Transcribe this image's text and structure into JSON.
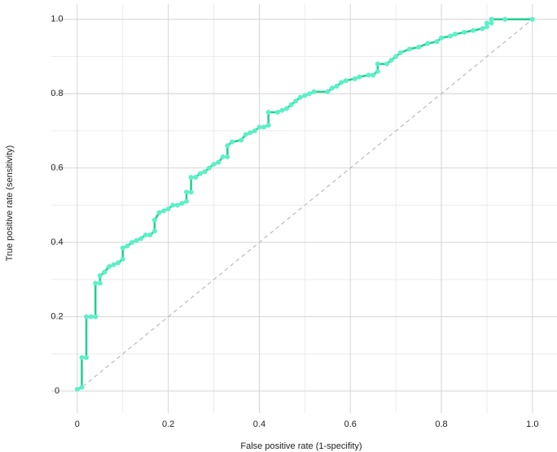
{
  "chart_data": {
    "type": "line",
    "x_label": "False positive rate (1-specifity)",
    "y_label": "True positive rate (sensitivity)",
    "xlim": [
      -0.057,
      1.054
    ],
    "ylim": [
      -0.059,
      1.041
    ],
    "xticks": [
      0,
      0.2,
      0.4,
      0.6,
      0.8,
      {
        "value": 1,
        "label": "1.0"
      }
    ],
    "yticks": [
      0,
      0.2,
      0.4,
      0.6,
      0.8,
      {
        "value": 1,
        "label": "1.0"
      }
    ],
    "minor_xticks": [
      0.1,
      0.3,
      0.5,
      0.7,
      0.9
    ],
    "minor_yticks": [
      0.1,
      0.3,
      0.5,
      0.7,
      0.9
    ],
    "grid": true,
    "diagonal": true,
    "series": [
      {
        "color": "#1fcf8f",
        "marker_color": "#5cf0c8",
        "x": [
          0,
          0.01,
          0.01,
          0.02,
          0.02,
          0.03,
          0.04,
          0.04,
          0.05,
          0.05,
          0.06,
          0.07,
          0.08,
          0.09,
          0.1,
          0.1,
          0.11,
          0.12,
          0.13,
          0.14,
          0.15,
          0.16,
          0.17,
          0.17,
          0.18,
          0.19,
          0.2,
          0.21,
          0.22,
          0.23,
          0.24,
          0.24,
          0.25,
          0.25,
          0.26,
          0.27,
          0.28,
          0.29,
          0.3,
          0.31,
          0.32,
          0.33,
          0.33,
          0.34,
          0.36,
          0.37,
          0.38,
          0.39,
          0.4,
          0.41,
          0.42,
          0.42,
          0.44,
          0.45,
          0.46,
          0.47,
          0.48,
          0.49,
          0.5,
          0.51,
          0.52,
          0.55,
          0.56,
          0.57,
          0.58,
          0.59,
          0.61,
          0.62,
          0.64,
          0.65,
          0.66,
          0.66,
          0.68,
          0.69,
          0.7,
          0.71,
          0.73,
          0.75,
          0.77,
          0.79,
          0.8,
          0.82,
          0.83,
          0.85,
          0.87,
          0.89,
          0.9,
          0.9,
          0.91,
          0.91,
          0.94,
          1
        ],
        "values": [
          0.005,
          0.01,
          0.09,
          0.09,
          0.2,
          0.2,
          0.2,
          0.29,
          0.29,
          0.31,
          0.32,
          0.335,
          0.34,
          0.345,
          0.355,
          0.385,
          0.39,
          0.4,
          0.405,
          0.41,
          0.42,
          0.42,
          0.43,
          0.46,
          0.48,
          0.485,
          0.49,
          0.5,
          0.5,
          0.505,
          0.51,
          0.535,
          0.535,
          0.575,
          0.575,
          0.585,
          0.59,
          0.6,
          0.61,
          0.615,
          0.63,
          0.63,
          0.66,
          0.67,
          0.675,
          0.69,
          0.695,
          0.7,
          0.71,
          0.71,
          0.715,
          0.75,
          0.75,
          0.755,
          0.76,
          0.77,
          0.78,
          0.79,
          0.795,
          0.8,
          0.805,
          0.805,
          0.815,
          0.82,
          0.83,
          0.835,
          0.84,
          0.845,
          0.85,
          0.85,
          0.86,
          0.88,
          0.88,
          0.89,
          0.9,
          0.91,
          0.92,
          0.925,
          0.935,
          0.94,
          0.95,
          0.955,
          0.96,
          0.965,
          0.97,
          0.975,
          0.98,
          0.99,
          0.99,
          1,
          1,
          1
        ]
      }
    ]
  }
}
